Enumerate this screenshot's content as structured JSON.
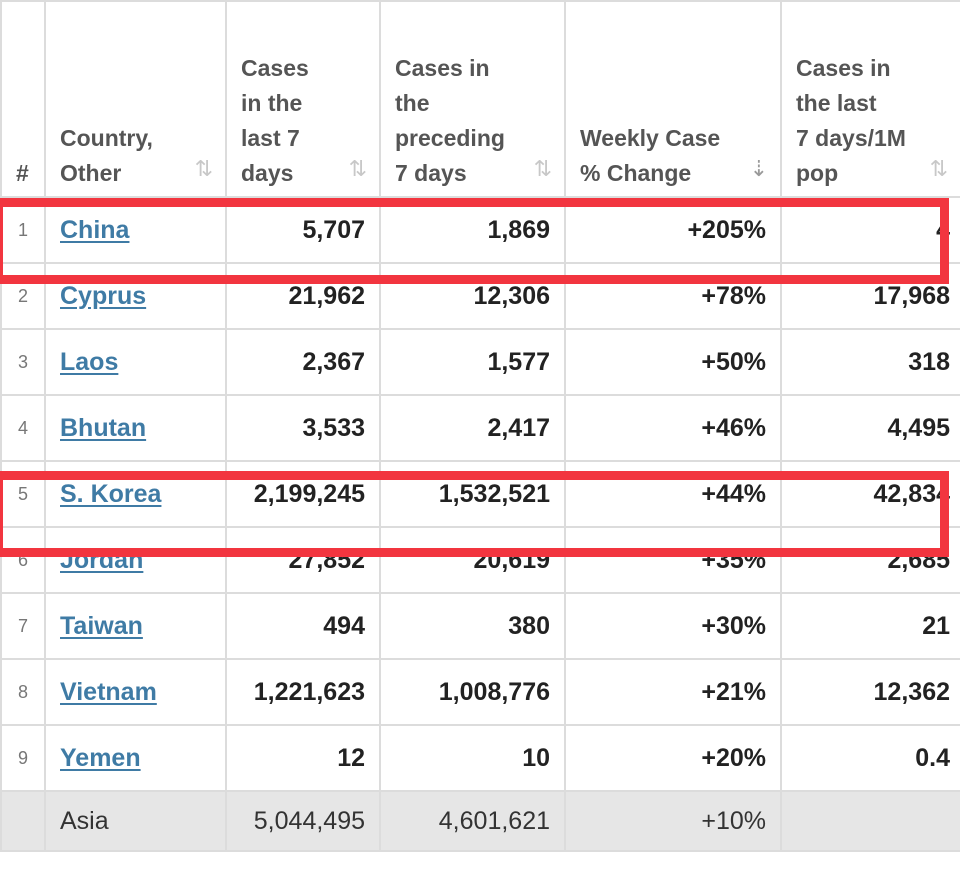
{
  "table": {
    "headers": {
      "index": "#",
      "country": [
        "Country,",
        "Other"
      ],
      "cases7": [
        "Cases",
        "in the",
        "last 7",
        "days"
      ],
      "casesPrev": [
        "Cases in",
        "the",
        "preceding",
        "7 days"
      ],
      "change": [
        "Weekly Case",
        "% Change"
      ],
      "perMillion": [
        "Cases in",
        "the last",
        "7 days/1M",
        "pop"
      ]
    },
    "sort_icons": {
      "default": "sort-both-icon",
      "active": "sort-desc-icon"
    },
    "rows": [
      {
        "index": "1",
        "country": "China",
        "cases7": "5,707",
        "casesPrev": "1,869",
        "change": "+205%",
        "perMillion": "4"
      },
      {
        "index": "2",
        "country": "Cyprus",
        "cases7": "21,962",
        "casesPrev": "12,306",
        "change": "+78%",
        "perMillion": "17,968"
      },
      {
        "index": "3",
        "country": "Laos",
        "cases7": "2,367",
        "casesPrev": "1,577",
        "change": "+50%",
        "perMillion": "318"
      },
      {
        "index": "4",
        "country": "Bhutan",
        "cases7": "3,533",
        "casesPrev": "2,417",
        "change": "+46%",
        "perMillion": "4,495"
      },
      {
        "index": "5",
        "country": "S. Korea",
        "cases7": "2,199,245",
        "casesPrev": "1,532,521",
        "change": "+44%",
        "perMillion": "42,834"
      },
      {
        "index": "6",
        "country": "Jordan",
        "cases7": "27,852",
        "casesPrev": "20,619",
        "change": "+35%",
        "perMillion": "2,685"
      },
      {
        "index": "7",
        "country": "Taiwan",
        "cases7": "494",
        "casesPrev": "380",
        "change": "+30%",
        "perMillion": "21"
      },
      {
        "index": "8",
        "country": "Vietnam",
        "cases7": "1,221,623",
        "casesPrev": "1,008,776",
        "change": "+21%",
        "perMillion": "12,362"
      },
      {
        "index": "9",
        "country": "Yemen",
        "cases7": "12",
        "casesPrev": "10",
        "change": "+20%",
        "perMillion": "0.4"
      }
    ],
    "total": {
      "country": "Asia",
      "cases7": "5,044,495",
      "casesPrev": "4,601,621",
      "change": "+10%",
      "perMillion": ""
    }
  },
  "highlight": {
    "color": "#f2353f",
    "rows": [
      "China",
      "S. Korea"
    ]
  },
  "colors": {
    "link": "#3f7ba5",
    "grid": "#dcdcdc",
    "total_bg": "#e6e6e6"
  }
}
